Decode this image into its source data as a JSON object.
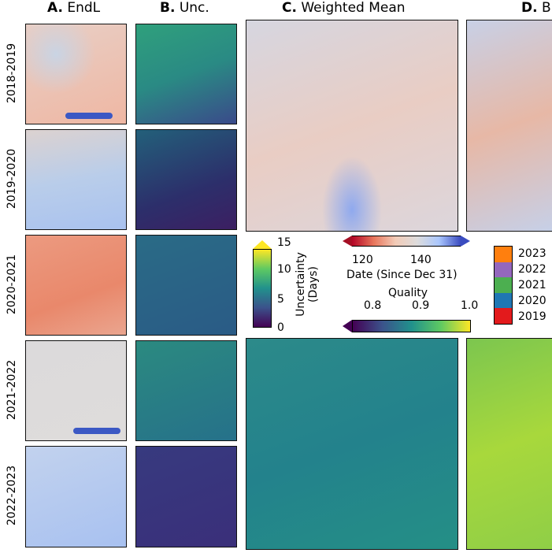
{
  "columns": [
    {
      "letter": "A.",
      "name": "EndL"
    },
    {
      "letter": "B.",
      "name": "Unc."
    },
    {
      "letter": "C.",
      "name": "Weighted Mean"
    },
    {
      "letter": "D.",
      "name": "B"
    }
  ],
  "rows": [
    "2018-2019",
    "2019-2020",
    "2020-2021",
    "2021-2022",
    "2022-2023"
  ],
  "uncertainty_bar": {
    "label1": "Uncertainty",
    "label2": "(Days)",
    "ticks": [
      "15",
      "10",
      "5",
      "0"
    ],
    "range": [
      0,
      15
    ]
  },
  "date_bar": {
    "label": "Date (Since Dec 31)",
    "ticks": [
      "120",
      "140"
    ]
  },
  "quality_bar": {
    "label": "Quality",
    "ticks": [
      "0.8",
      "0.9",
      "1.0"
    ]
  },
  "year_legend": {
    "items": [
      {
        "year": "2023",
        "color": "#ff7f0e"
      },
      {
        "year": "2022",
        "color": "#9467bd"
      },
      {
        "year": "2021",
        "color": "#4caf50"
      },
      {
        "year": "2020",
        "color": "#1f77b4"
      },
      {
        "year": "2019",
        "color": "#e31a1c"
      }
    ]
  }
}
